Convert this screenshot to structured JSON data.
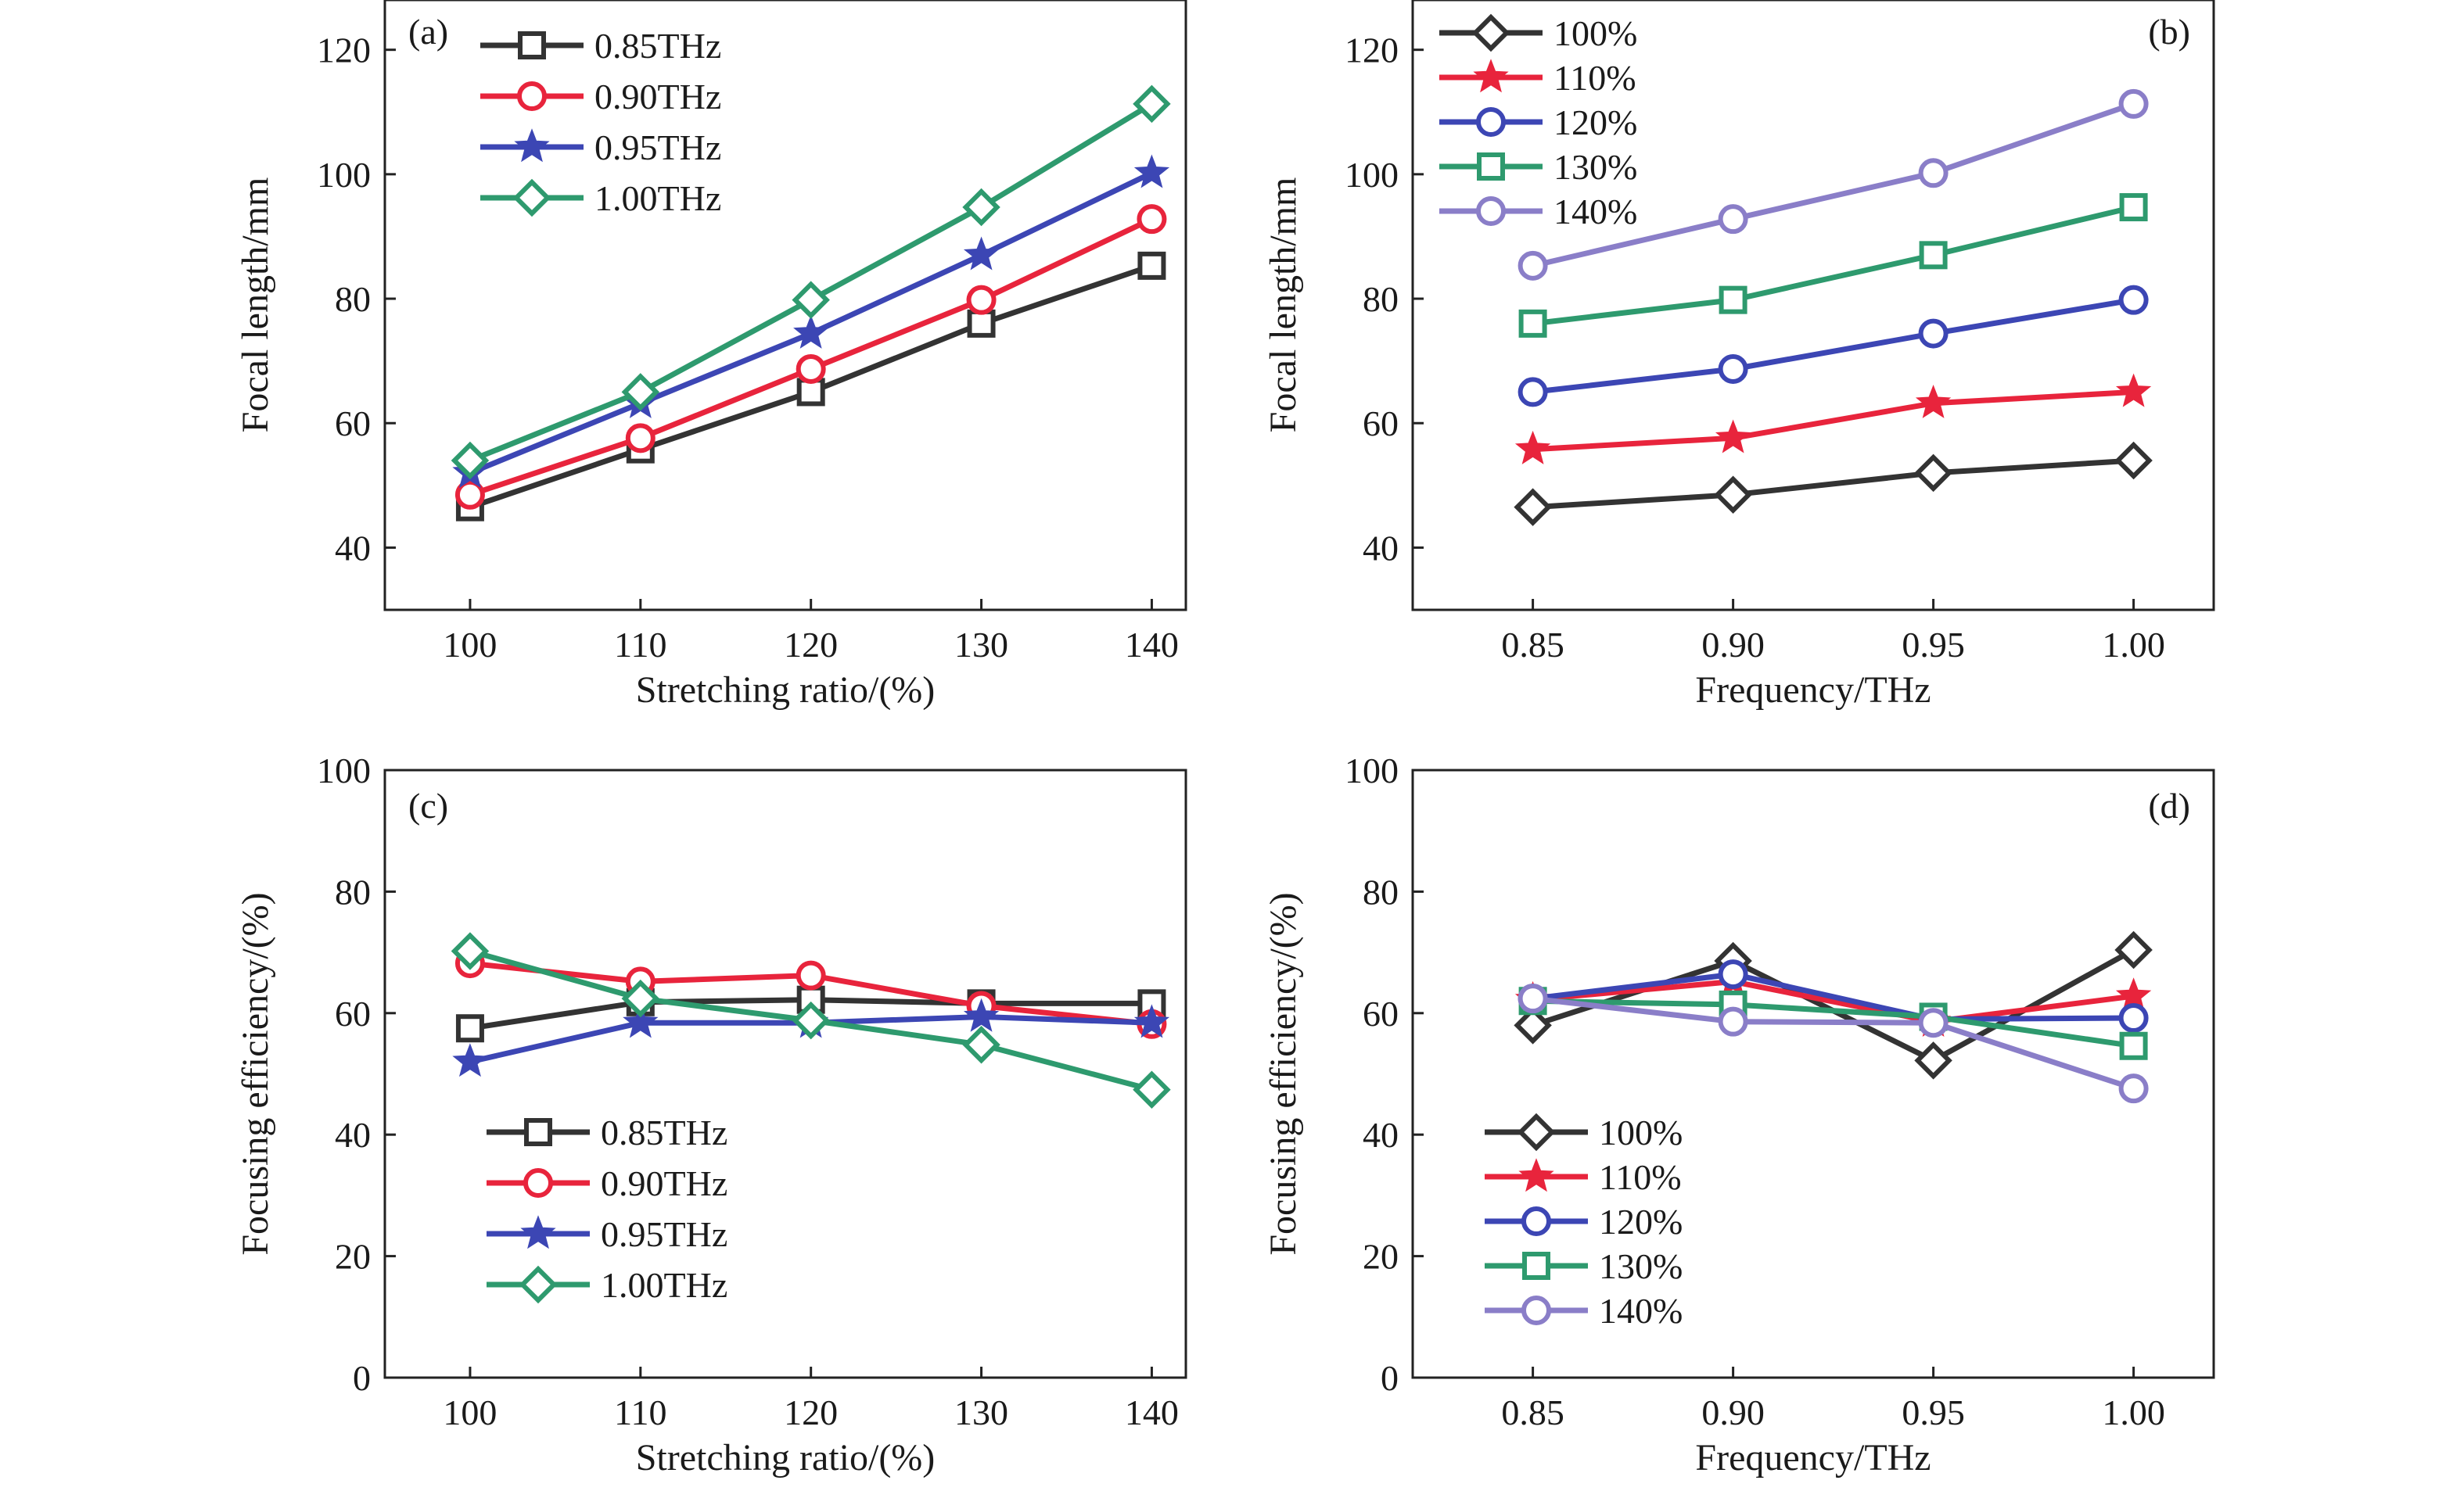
{
  "colors": {
    "black": "#333333",
    "red": "#e8243c",
    "blue": "#3c46b4",
    "green": "#2e9a6e",
    "purple": "#8a7ec8"
  },
  "chart_data": [
    {
      "panel": "(a)",
      "type": "line",
      "xlabel": "Stretching ratio/(%)",
      "ylabel": "Focal length/mm",
      "x": [
        100,
        110,
        120,
        130,
        140
      ],
      "xticks": [
        100,
        110,
        120,
        130,
        140
      ],
      "xlim": [
        95,
        142
      ],
      "yticks": [
        40,
        60,
        80,
        100,
        120
      ],
      "ylim": [
        30,
        128
      ],
      "legend_position": "top-left",
      "series": [
        {
          "name": "0.85THz",
          "color": "#333333",
          "marker": "square",
          "values": [
            46.5,
            55.8,
            65.0,
            76.0,
            85.3
          ]
        },
        {
          "name": "0.90THz",
          "color": "#e8243c",
          "marker": "circle",
          "values": [
            48.5,
            57.6,
            68.7,
            79.8,
            92.8
          ]
        },
        {
          "name": "0.95THz",
          "color": "#3c46b4",
          "marker": "star",
          "values": [
            52.0,
            63.2,
            74.4,
            87.0,
            100.2
          ]
        },
        {
          "name": "1.00THz",
          "color": "#2e9a6e",
          "marker": "diamond",
          "values": [
            54.0,
            65.0,
            79.8,
            94.7,
            111.3
          ]
        }
      ]
    },
    {
      "panel": "(b)",
      "type": "line",
      "xlabel": "Frequency/THz",
      "ylabel": "Focal length/mm",
      "x": [
        0.85,
        0.9,
        0.95,
        1.0
      ],
      "xticks": [
        "0.85",
        "0.90",
        "0.95",
        "1.00"
      ],
      "xlim": [
        0.82,
        1.02
      ],
      "yticks": [
        40,
        60,
        80,
        100,
        120
      ],
      "ylim": [
        30,
        128
      ],
      "legend_position": "top-left",
      "series": [
        {
          "name": "100%",
          "color": "#333333",
          "marker": "diamond",
          "values": [
            46.5,
            48.5,
            52.0,
            54.0
          ]
        },
        {
          "name": "110%",
          "color": "#e8243c",
          "marker": "star",
          "values": [
            55.8,
            57.6,
            63.2,
            65.0
          ]
        },
        {
          "name": "120%",
          "color": "#3c46b4",
          "marker": "circle",
          "values": [
            65.0,
            68.7,
            74.4,
            79.8
          ]
        },
        {
          "name": "130%",
          "color": "#2e9a6e",
          "marker": "square",
          "values": [
            76.0,
            79.8,
            87.0,
            94.7
          ]
        },
        {
          "name": "140%",
          "color": "#8a7ec8",
          "marker": "circle",
          "values": [
            85.3,
            92.8,
            100.2,
            111.3
          ]
        }
      ]
    },
    {
      "panel": "(c)",
      "type": "line",
      "xlabel": "Stretching ratio/(%)",
      "ylabel": "Focusing efficiency/(%)",
      "x": [
        100,
        110,
        120,
        130,
        140
      ],
      "xticks": [
        100,
        110,
        120,
        130,
        140
      ],
      "xlim": [
        95,
        142
      ],
      "yticks": [
        0,
        20,
        40,
        60,
        80,
        100
      ],
      "ylim": [
        0,
        100
      ],
      "legend_position": "bottom-left",
      "series": [
        {
          "name": "0.85THz",
          "color": "#333333",
          "marker": "square",
          "values": [
            57.5,
            61.8,
            62.2,
            61.6,
            61.6
          ]
        },
        {
          "name": "0.90THz",
          "color": "#e8243c",
          "marker": "circle",
          "values": [
            68.2,
            65.2,
            66.2,
            61.2,
            58.2
          ]
        },
        {
          "name": "0.95THz",
          "color": "#3c46b4",
          "marker": "star",
          "values": [
            52.0,
            58.4,
            58.4,
            59.4,
            58.4
          ]
        },
        {
          "name": "1.00THz",
          "color": "#2e9a6e",
          "marker": "diamond",
          "values": [
            70.2,
            62.4,
            58.8,
            54.8,
            47.4
          ]
        }
      ]
    },
    {
      "panel": "(d)",
      "type": "line",
      "xlabel": "Frequency/THz",
      "ylabel": "Focusing efficiency/(%)",
      "x": [
        0.85,
        0.9,
        0.95,
        1.0
      ],
      "xticks": [
        "0.85",
        "0.90",
        "0.95",
        "1.00"
      ],
      "xlim": [
        0.82,
        1.02
      ],
      "yticks": [
        0,
        20,
        40,
        60,
        80,
        100
      ],
      "ylim": [
        0,
        100
      ],
      "legend_position": "bottom-left",
      "series": [
        {
          "name": "100%",
          "color": "#333333",
          "marker": "diamond",
          "values": [
            58.0,
            68.6,
            52.2,
            70.4
          ]
        },
        {
          "name": "110%",
          "color": "#e8243c",
          "marker": "star",
          "values": [
            62.2,
            65.2,
            58.6,
            62.8
          ]
        },
        {
          "name": "120%",
          "color": "#3c46b4",
          "marker": "circle",
          "values": [
            62.4,
            66.4,
            59.0,
            59.2
          ]
        },
        {
          "name": "130%",
          "color": "#2e9a6e",
          "marker": "square",
          "values": [
            62.0,
            61.4,
            59.4,
            54.6
          ]
        },
        {
          "name": "140%",
          "color": "#8a7ec8",
          "marker": "circle",
          "values": [
            62.4,
            58.6,
            58.4,
            47.6
          ]
        }
      ]
    }
  ]
}
